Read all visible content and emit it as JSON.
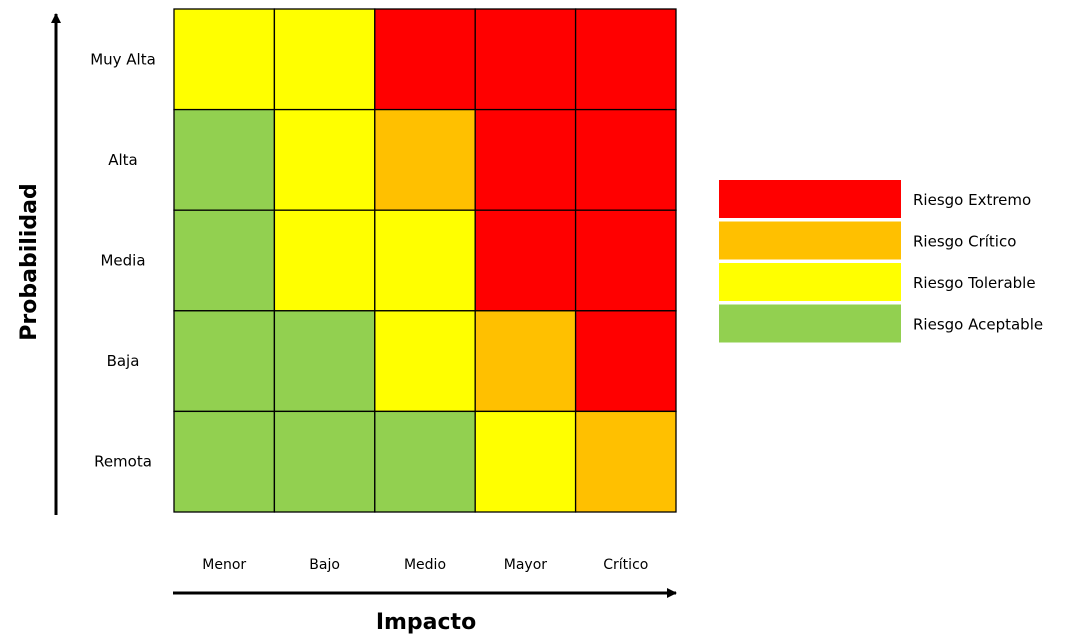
{
  "axes": {
    "y_title": "Probabilidad",
    "x_title": "Impacto"
  },
  "rows": [
    "Muy Alta",
    "Alta",
    "Media",
    "Baja",
    "Remota"
  ],
  "columns": [
    "Menor",
    "Bajo",
    "Medio",
    "Mayor",
    "Crítico"
  ],
  "grid": [
    [
      "tolerable",
      "tolerable",
      "extremo",
      "extremo",
      "extremo"
    ],
    [
      "aceptable",
      "tolerable",
      "critico",
      "extremo",
      "extremo"
    ],
    [
      "aceptable",
      "tolerable",
      "tolerable",
      "extremo",
      "extremo"
    ],
    [
      "aceptable",
      "aceptable",
      "tolerable",
      "critico",
      "extremo"
    ],
    [
      "aceptable",
      "aceptable",
      "aceptable",
      "tolerable",
      "critico"
    ]
  ],
  "levels": {
    "extremo": "#ff0000",
    "critico": "#ffc000",
    "tolerable": "#ffff00",
    "aceptable": "#92d050"
  },
  "legend": [
    {
      "key": "extremo",
      "label": "Riesgo Extremo"
    },
    {
      "key": "critico",
      "label": "Riesgo Crítico"
    },
    {
      "key": "tolerable",
      "label": "Riesgo Tolerable"
    },
    {
      "key": "aceptable",
      "label": "Riesgo Aceptable"
    }
  ]
}
